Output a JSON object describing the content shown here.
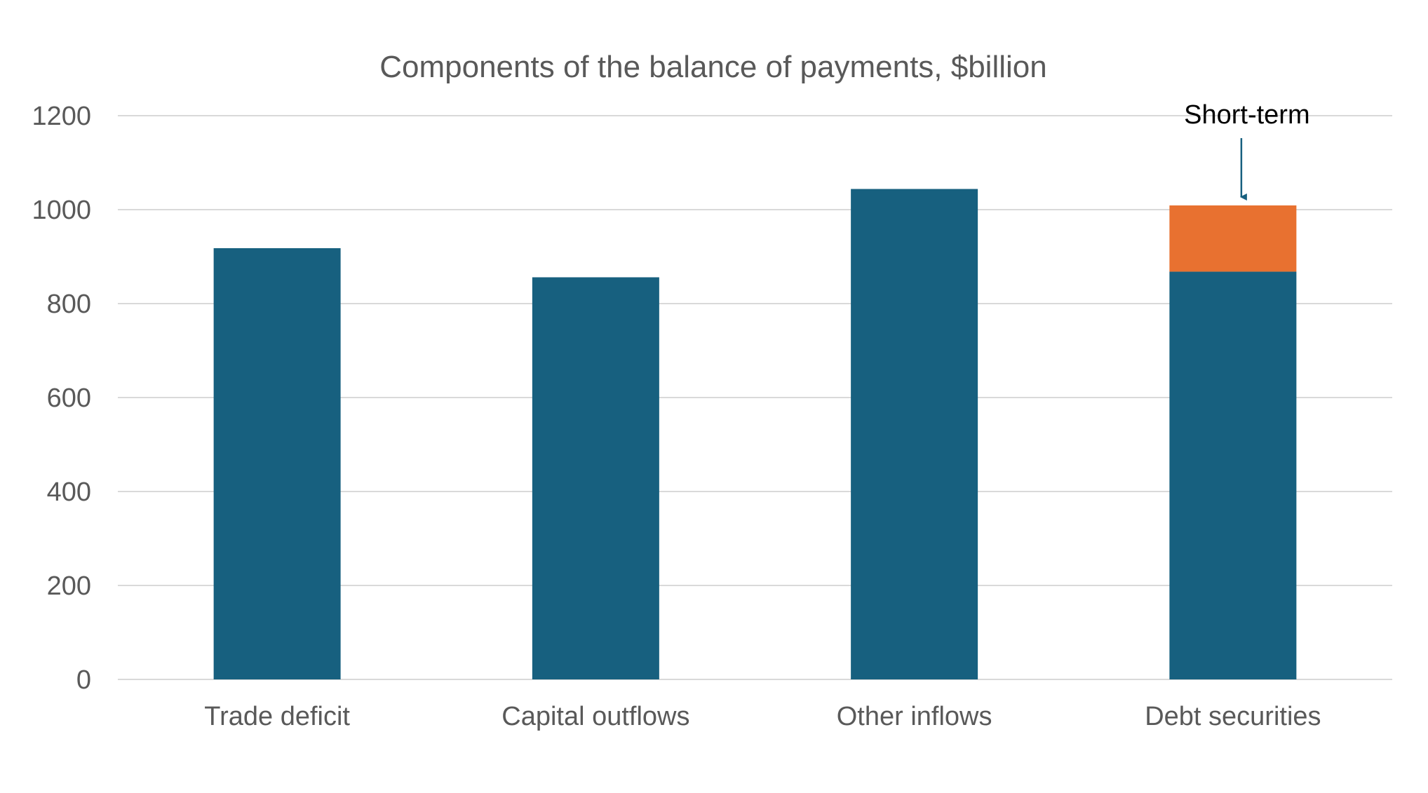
{
  "chart_data": {
    "type": "bar",
    "stacked": true,
    "title": "Components of the balance of payments, $billion",
    "xlabel": "",
    "ylabel": "",
    "categories": [
      "Trade deficit",
      "Capital outflows",
      "Other inflows",
      "Debt securities"
    ],
    "series": [
      {
        "color": "#17607F",
        "values": [
          918,
          856,
          1044,
          868
        ]
      },
      {
        "color": "#E87130",
        "values": [
          0,
          0,
          0,
          141
        ]
      }
    ],
    "ylim": [
      0,
      1200
    ],
    "yticks": [
      0,
      200,
      400,
      600,
      800,
      1000,
      1200
    ],
    "grid": true,
    "legend": "none",
    "annotations": [
      {
        "text": "Short-term",
        "category": "Debt securities",
        "arrow": "down",
        "arrow_color": "#17607F"
      }
    ]
  }
}
